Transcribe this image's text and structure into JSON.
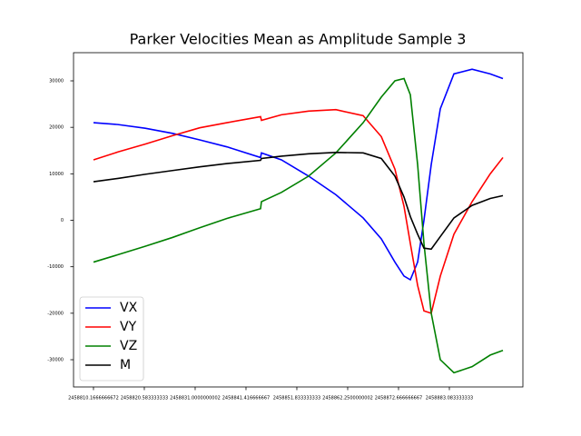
{
  "chart_data": {
    "type": "line",
    "title": "Parker Velocities Mean as Amplitude Sample 3",
    "x": [
      2458810.17,
      2458815.19,
      2458820.77,
      2458826.35,
      2458831.93,
      2458837.51,
      2458844.4,
      2458844.58,
      2458848.67,
      2458854.25,
      2458859.83,
      2458865.42,
      2458869.14,
      2458871.93,
      2458873.79,
      2458875.09,
      2458876.58,
      2458877.88,
      2458879.37,
      2458881.23,
      2458884.02,
      2458887.74,
      2458891.46,
      2458894.06
    ],
    "series": [
      {
        "name": "VX",
        "color": "#0000ff",
        "values": [
          21000,
          20600,
          19800,
          18700,
          17300,
          15800,
          13500,
          14500,
          13000,
          9500,
          5500,
          500,
          -4000,
          -9000,
          -12000,
          -12800,
          -9000,
          0,
          12000,
          24000,
          31500,
          32500,
          31500,
          30500
        ]
      },
      {
        "name": "VY",
        "color": "#ff0000",
        "values": [
          13000,
          14700,
          16400,
          18200,
          19900,
          21000,
          22300,
          21500,
          22700,
          23500,
          23800,
          22500,
          18000,
          11000,
          3000,
          -5000,
          -14000,
          -19500,
          -20000,
          -12000,
          -3000,
          4000,
          10000,
          13500
        ]
      },
      {
        "name": "VZ",
        "color": "#008000",
        "values": [
          -9000,
          -7400,
          -5600,
          -3700,
          -1600,
          400,
          2500,
          4000,
          6000,
          9500,
          14500,
          21000,
          26500,
          30000,
          30500,
          27000,
          12000,
          -5000,
          -20000,
          -30000,
          -32800,
          -31500,
          -29000,
          -28000
        ]
      },
      {
        "name": "M",
        "color": "#000000",
        "values": [
          8300,
          9000,
          9900,
          10700,
          11500,
          12200,
          12900,
          13300,
          13800,
          14300,
          14600,
          14500,
          13300,
          9500,
          5000,
          800,
          -3000,
          -6000,
          -6200,
          -3500,
          500,
          3200,
          4700,
          5300
        ]
      }
    ],
    "xlim": [
      2458806.08,
      2458898.15
    ],
    "ylim": [
      -35860,
      36060
    ],
    "xticks": [
      {
        "value": 2458810.166666667,
        "label": "2458810.1666666672"
      },
      {
        "value": 2458820.583333333,
        "label": "2458820.583333333"
      },
      {
        "value": 2458831.0,
        "label": "2458831.0000000002"
      },
      {
        "value": 2458841.416666667,
        "label": "2458841.416666667"
      },
      {
        "value": 2458851.833333333,
        "label": "2458851.833333333"
      },
      {
        "value": 2458862.25,
        "label": "2458862.2500000002"
      },
      {
        "value": 2458872.666666667,
        "label": "2458872.666666667"
      },
      {
        "value": 2458883.083333333,
        "label": "2458883.083333333"
      }
    ],
    "yticks": [
      -30000,
      -20000,
      -10000,
      0,
      10000,
      20000,
      30000
    ],
    "legend": "lower left"
  }
}
